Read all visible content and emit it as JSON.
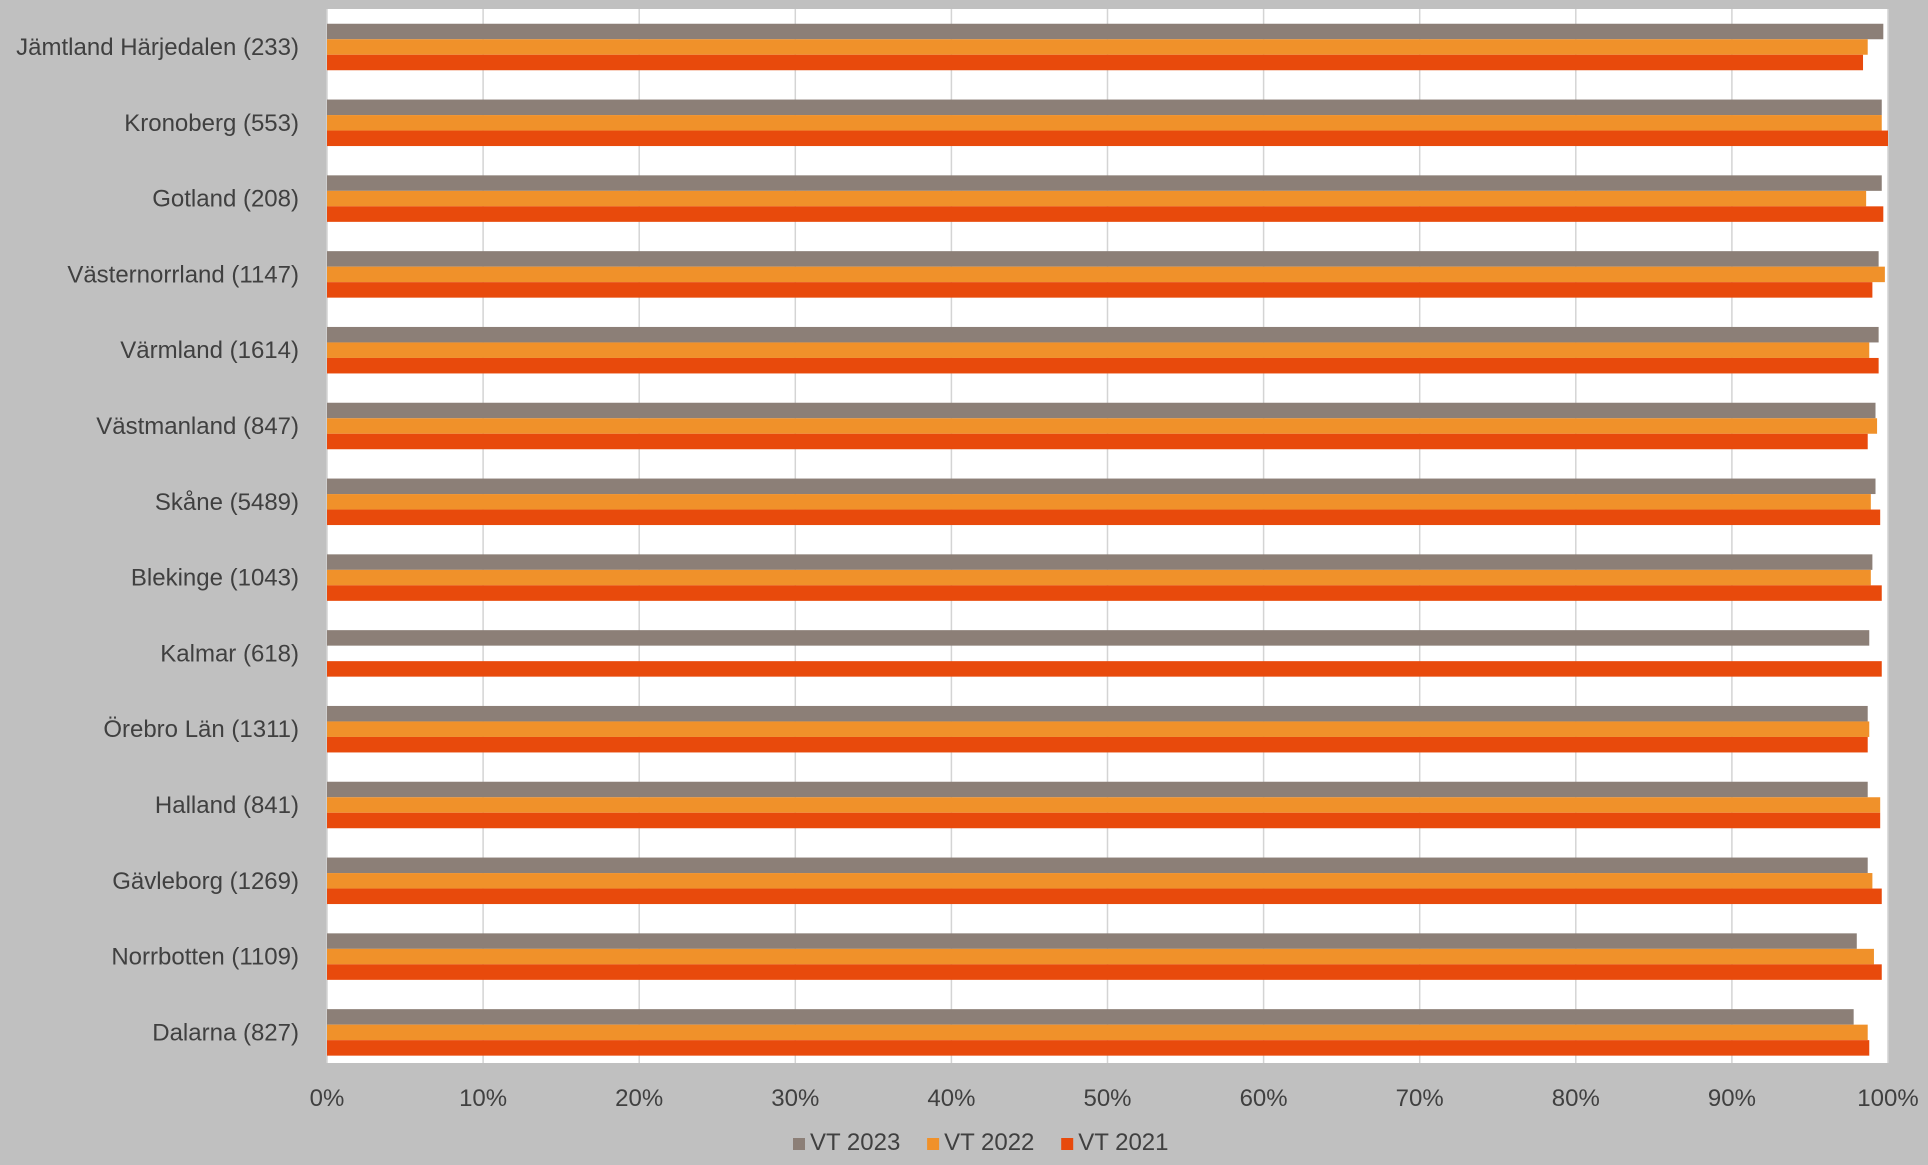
{
  "colors": {
    "background": "#c0c0c0",
    "plot_area": "#ffffff",
    "gridline": "#d4d4d4",
    "text": "#404040"
  },
  "chart_data": {
    "type": "bar",
    "orientation": "horizontal",
    "title": "",
    "xlabel": "",
    "ylabel": "",
    "xlim": [
      0,
      100
    ],
    "x_ticks": [
      "0%",
      "10%",
      "20%",
      "30%",
      "40%",
      "50%",
      "60%",
      "70%",
      "80%",
      "90%",
      "100%"
    ],
    "grid": "vertical",
    "legend_position": "bottom",
    "categories": [
      "Jämtland Härjedalen (233)",
      "Kronoberg (553)",
      "Gotland (208)",
      "Västernorrland (1147)",
      "Värmland (1614)",
      "Västmanland (847)",
      "Skåne (5489)",
      "Blekinge (1043)",
      "Kalmar (618)",
      "Örebro Län (1311)",
      "Halland (841)",
      "Gävleborg (1269)",
      "Norrbotten (1109)",
      "Dalarna (827)"
    ],
    "series": [
      {
        "name": "VT 2023",
        "color": "#8c7f77",
        "values": [
          99.7,
          99.6,
          99.6,
          99.4,
          99.4,
          99.2,
          99.2,
          99.0,
          98.8,
          98.7,
          98.7,
          98.7,
          98.0,
          97.8
        ]
      },
      {
        "name": "VT 2022",
        "color": "#f0912a",
        "values": [
          98.7,
          99.6,
          98.6,
          99.8,
          98.8,
          99.3,
          98.9,
          98.9,
          null,
          98.8,
          99.5,
          99.0,
          99.1,
          98.7
        ]
      },
      {
        "name": "VT 2021",
        "color": "#e84a0c",
        "values": [
          98.4,
          100.0,
          99.7,
          99.0,
          99.4,
          98.7,
          99.5,
          99.6,
          99.6,
          98.7,
          99.5,
          99.6,
          99.6,
          98.8
        ]
      }
    ]
  }
}
